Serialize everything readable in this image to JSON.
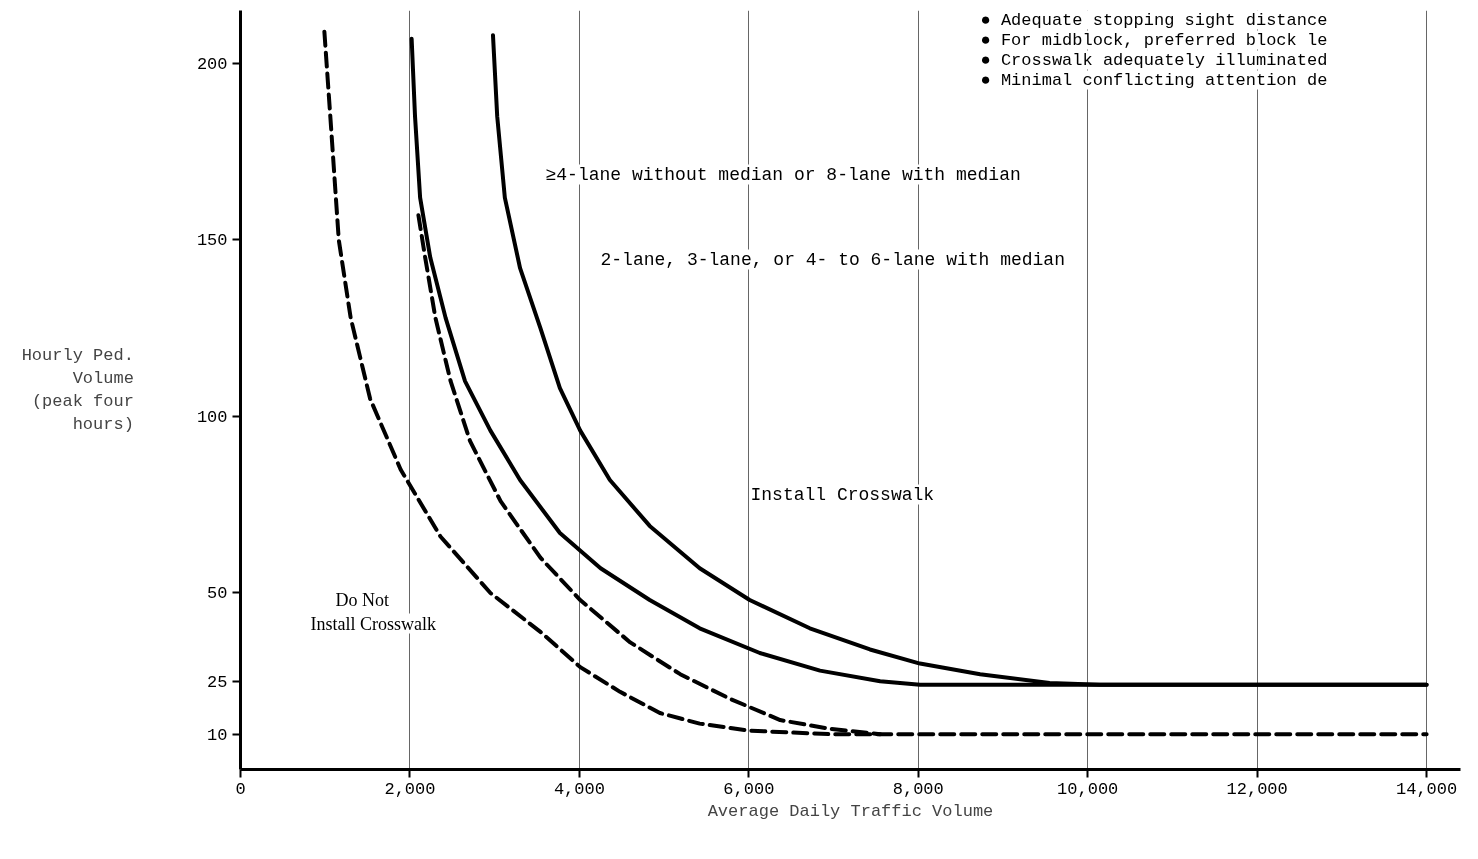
{
  "chart_data": {
    "type": "line",
    "xlabel": "Average Daily Traffic Volume",
    "ylabel": "Hourly Ped.\nVolume\n(peak four\nhours)",
    "xlim": [
      0,
      14400
    ],
    "ylim": [
      0,
      215
    ],
    "xticks": [
      0,
      {
        "value": 2000,
        "label": "2,000"
      },
      {
        "value": 4000,
        "label": "4,000"
      },
      {
        "value": 6000,
        "label": "6,000"
      },
      {
        "value": 8000,
        "label": "8,000"
      },
      {
        "value": 10000,
        "label": "10,000"
      },
      {
        "value": 12000,
        "label": "12,000"
      },
      {
        "value": 14000,
        "label": "14,000"
      }
    ],
    "yticks": [
      10,
      25,
      50,
      100,
      150,
      200
    ],
    "grid": "x",
    "series": [
      {
        "color": "#000000",
        "line_style": "dashed",
        "x": [
          990,
          1060,
          1160,
          1300,
          1530,
          1890,
          2360,
          2950,
          3540,
          4010,
          4480,
          4950,
          5420,
          6010,
          6960,
          14000
        ],
        "values": [
          209,
          185,
          150,
          128,
          105,
          85,
          66,
          50,
          39,
          29,
          22,
          16,
          13,
          11,
          10,
          10
        ]
      },
      {
        "color": "#000000",
        "line_style": "dashed",
        "x": [
          2100,
          2180,
          2300,
          2480,
          2710,
          3070,
          3540,
          4010,
          4600,
          5190,
          5780,
          6370,
          6960,
          7550
        ],
        "values": [
          157,
          145,
          128,
          110,
          93,
          76,
          60,
          48,
          36,
          27,
          20,
          14,
          11.5,
          10
        ]
      },
      {
        "color": "#000000",
        "line_style": "solid",
        "x": [
          2020,
          2060,
          2120,
          2240,
          2420,
          2650,
          2950,
          3300,
          3770,
          4250,
          4830,
          5420,
          6130,
          6840,
          7550,
          8020,
          14000
        ],
        "values": [
          207,
          185,
          162,
          145,
          128,
          110,
          96,
          82,
          67,
          57,
          48,
          40,
          33,
          28,
          25,
          24,
          24
        ]
      },
      {
        "color": "#000000",
        "line_style": "solid",
        "x": [
          2980,
          3030,
          3120,
          3300,
          3540,
          3770,
          4010,
          4360,
          4830,
          5420,
          6010,
          6720,
          7430,
          8020,
          8730,
          9550,
          10140,
          14000
        ],
        "values": [
          208,
          185,
          162,
          142,
          125,
          108,
          96,
          82,
          69,
          57,
          48,
          40,
          34,
          30,
          27,
          24.5,
          24,
          24
        ]
      }
    ],
    "annotations": [
      "≥4-lane without median or 8-lane with median",
      "2-lane, 3-lane, or 4- to 6-lane with median",
      "Install Crosswalk",
      "Do Not\nInstall Crosswalk",
      "● Adequate stopping sight distance",
      "● For midblock, preferred block le",
      "● Crosswalk adequately illuminated",
      "● Minimal conflicting attention de"
    ]
  }
}
